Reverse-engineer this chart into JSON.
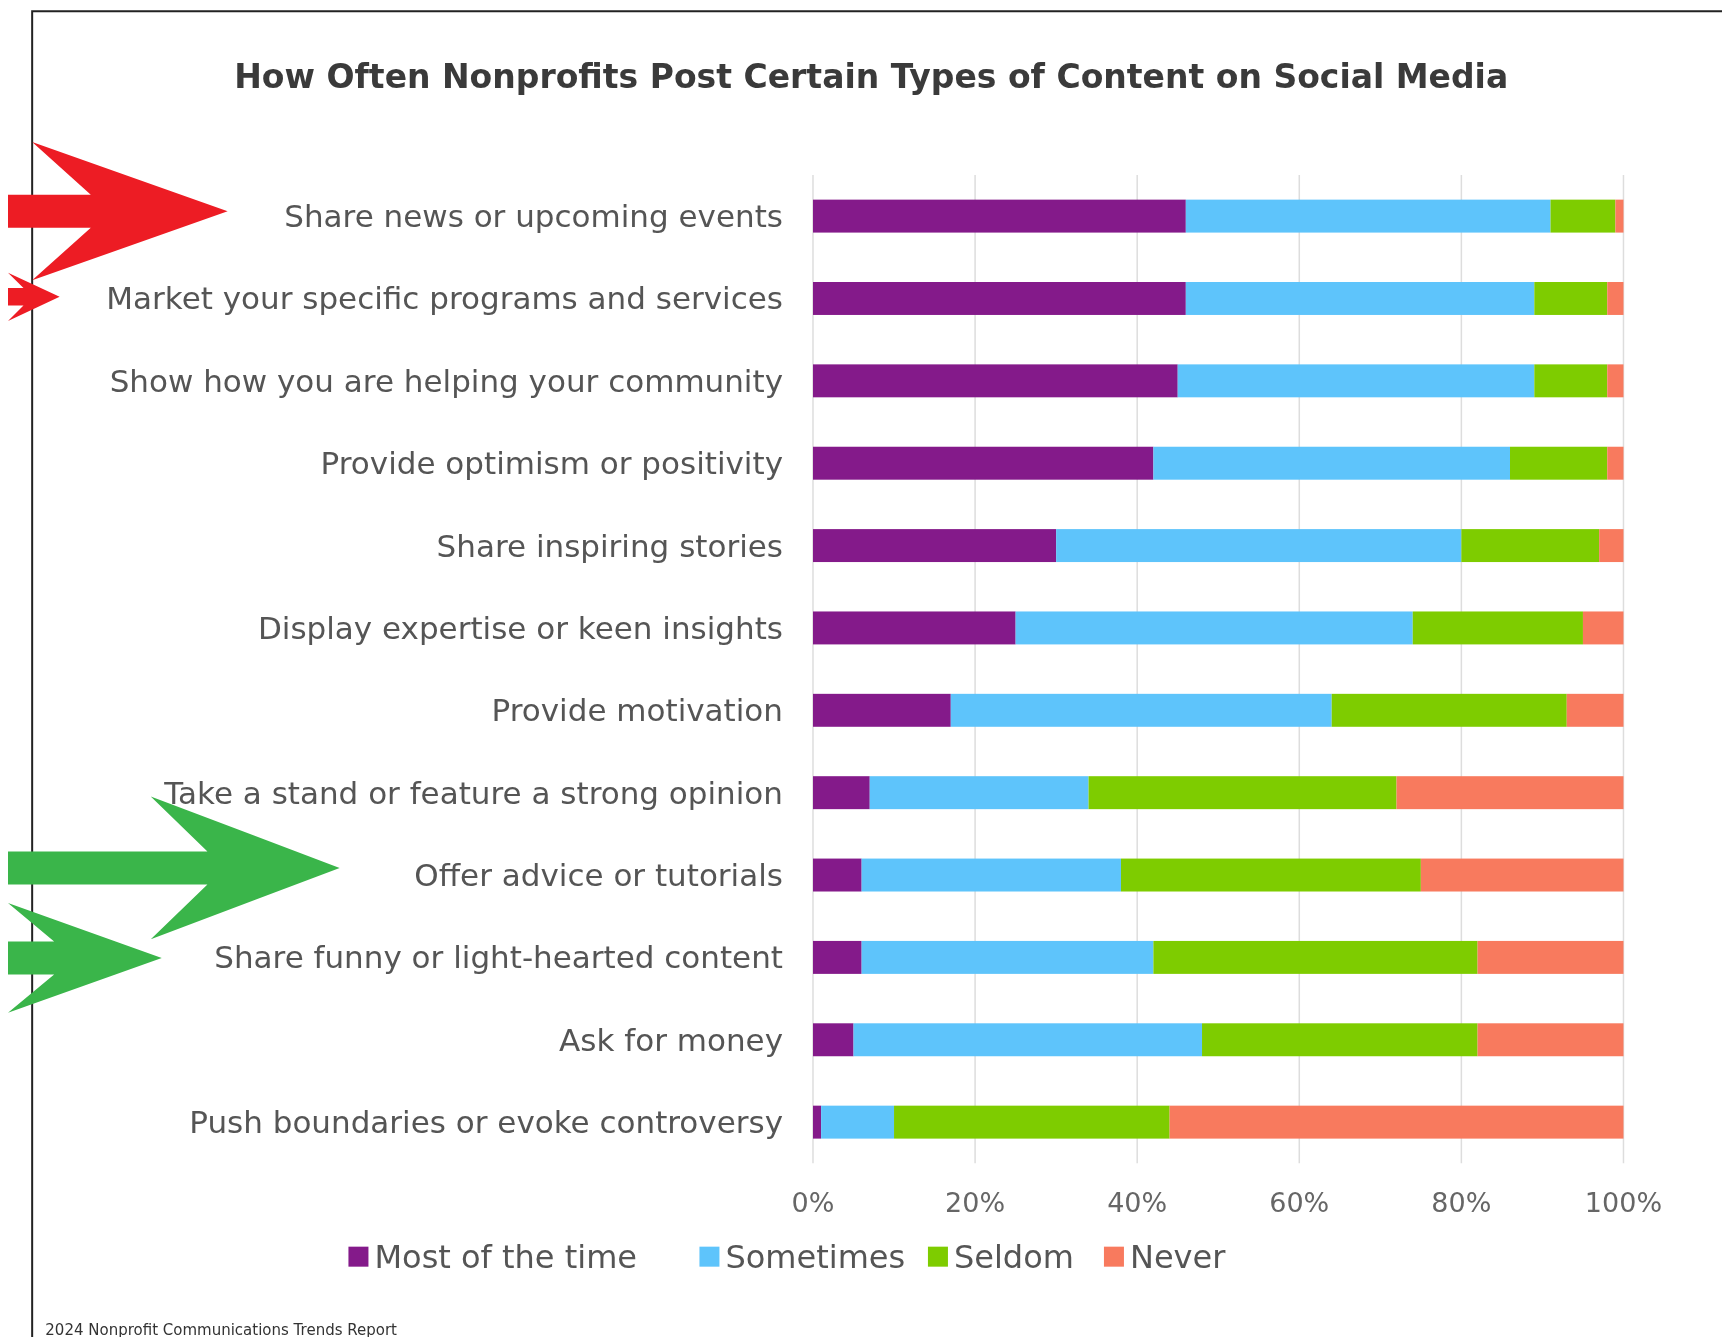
{
  "chart_data": {
    "type": "bar",
    "orientation": "horizontal",
    "stacked": true,
    "title": "How Often Nonprofits Post Certain Types of Content on Social Media",
    "categories": [
      "Share news or upcoming events",
      "Market your specific programs and services",
      "Show how you are helping your community",
      "Provide optimism or positivity",
      "Share inspiring stories",
      "Display expertise or keen insights",
      "Provide motivation",
      "Take a stand or feature a strong opinion",
      "Offer advice or tutorials",
      "Share funny or light-hearted content",
      "Ask for money",
      "Push boundaries or evoke controversy"
    ],
    "series": [
      {
        "name": "Most of the time",
        "color": "#841a8a",
        "values": [
          46,
          46,
          45,
          42,
          30,
          25,
          17,
          7,
          6,
          6,
          5,
          1
        ]
      },
      {
        "name": "Sometimes",
        "color": "#5ec4fb",
        "values": [
          45,
          43,
          44,
          44,
          50,
          49,
          47,
          27,
          32,
          36,
          43,
          9
        ]
      },
      {
        "name": "Seldom",
        "color": "#7ecc00",
        "values": [
          8,
          9,
          9,
          12,
          17,
          21,
          29,
          38,
          37,
          40,
          34,
          34
        ]
      },
      {
        "name": "Never",
        "color": "#f87a5e",
        "values": [
          1,
          2,
          2,
          2,
          3,
          5,
          7,
          28,
          25,
          18,
          18,
          56
        ]
      }
    ],
    "xlim": [
      0,
      100
    ],
    "xticks": [
      {
        "value": 0,
        "label": "0%"
      },
      {
        "value": 20,
        "label": "20%"
      },
      {
        "value": 40,
        "label": "40%"
      },
      {
        "value": 60,
        "label": "60%"
      },
      {
        "value": 80,
        "label": "80%"
      },
      {
        "value": 100,
        "label": "100%"
      }
    ],
    "grid": "x",
    "legend": "bottom",
    "annotations": [
      "2024 Nonprofit Communications Trends Report"
    ]
  }
}
